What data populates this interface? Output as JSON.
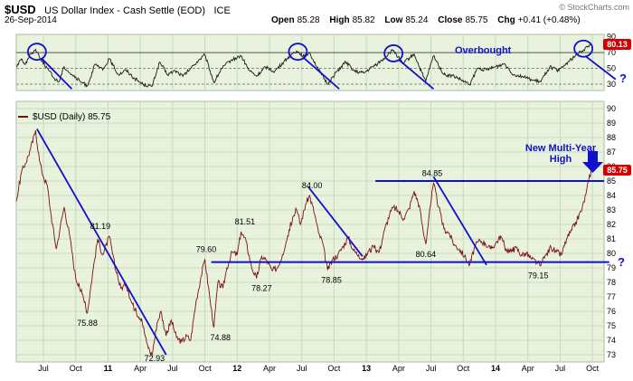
{
  "header": {
    "symbol": "$USD",
    "title": "US Dollar Index - Cash Settle (EOD)",
    "exchange": "ICE",
    "date": "26-Sep-2014",
    "quote_fields": [
      {
        "label": "Open",
        "value": "85.28"
      },
      {
        "label": "High",
        "value": "85.82"
      },
      {
        "label": "Low",
        "value": "85.24"
      },
      {
        "label": "Close",
        "value": "85.75"
      },
      {
        "label": "Chg",
        "value": "+0.41 (+0.48%)"
      }
    ],
    "copyright": "© StockCharts.com"
  },
  "annotations": {
    "legend": "$USD (Daily) 85.75",
    "overbought": "Overbought",
    "new_high_line1": "New Multi-Year",
    "new_high_line2": "High",
    "question_indicator": "?",
    "question_price": "?"
  },
  "colors": {
    "plot_bg": "#E8F2DC",
    "grid": "#C6DABE",
    "panel_border": "#A8BCA4",
    "price_line": "#7A1111",
    "indicator_line": "#1A1A1A",
    "annotation": "#1111CC",
    "badge_bg": "#D40000",
    "badge_text": "#FFFFFF"
  },
  "chart_data": {
    "type": "line",
    "title": "$USD US Dollar Index - Cash Settle (EOD) ICE",
    "x_domain": [
      2010.29,
      2014.84
    ],
    "x_ticks": [
      {
        "t": 2010.5,
        "label": "Jul"
      },
      {
        "t": 2010.75,
        "label": "Oct"
      },
      {
        "t": 2011.0,
        "label": "11",
        "year": true
      },
      {
        "t": 2011.25,
        "label": "Apr"
      },
      {
        "t": 2011.5,
        "label": "Jul"
      },
      {
        "t": 2011.75,
        "label": "Oct"
      },
      {
        "t": 2012.0,
        "label": "12",
        "year": true
      },
      {
        "t": 2012.25,
        "label": "Apr"
      },
      {
        "t": 2012.5,
        "label": "Jul"
      },
      {
        "t": 2012.75,
        "label": "Oct"
      },
      {
        "t": 2013.0,
        "label": "13",
        "year": true
      },
      {
        "t": 2013.25,
        "label": "Apr"
      },
      {
        "t": 2013.5,
        "label": "Jul"
      },
      {
        "t": 2013.75,
        "label": "Oct"
      },
      {
        "t": 2014.0,
        "label": "14",
        "year": true
      },
      {
        "t": 2014.25,
        "label": "Apr"
      },
      {
        "t": 2014.5,
        "label": "Jul"
      },
      {
        "t": 2014.75,
        "label": "Oct"
      }
    ],
    "panels": [
      {
        "id": "indicator",
        "kind": "rsi",
        "name": "Overbought/oversold oscillator",
        "ylim": [
          22,
          93
        ],
        "y_ticks": [
          90,
          70,
          50,
          30
        ],
        "levels": {
          "overbought": 70,
          "mid": 50,
          "oversold": 30
        },
        "last_value": "80.13",
        "noise": 2.2,
        "series": [
          [
            2010.29,
            52
          ],
          [
            2010.33,
            62
          ],
          [
            2010.36,
            55
          ],
          [
            2010.4,
            68
          ],
          [
            2010.44,
            74
          ],
          [
            2010.48,
            62
          ],
          [
            2010.53,
            50
          ],
          [
            2010.58,
            38
          ],
          [
            2010.62,
            33
          ],
          [
            2010.66,
            52
          ],
          [
            2010.72,
            42
          ],
          [
            2010.78,
            34
          ],
          [
            2010.84,
            28
          ],
          [
            2010.9,
            55
          ],
          [
            2010.96,
            48
          ],
          [
            2011.01,
            62
          ],
          [
            2011.08,
            42
          ],
          [
            2011.14,
            48
          ],
          [
            2011.2,
            38
          ],
          [
            2011.27,
            30
          ],
          [
            2011.34,
            27
          ],
          [
            2011.4,
            58
          ],
          [
            2011.46,
            42
          ],
          [
            2011.52,
            47
          ],
          [
            2011.58,
            40
          ],
          [
            2011.64,
            50
          ],
          [
            2011.7,
            60
          ],
          [
            2011.75,
            67
          ],
          [
            2011.82,
            32
          ],
          [
            2011.88,
            50
          ],
          [
            2011.95,
            60
          ],
          [
            2012.03,
            66
          ],
          [
            2012.09,
            48
          ],
          [
            2012.15,
            40
          ],
          [
            2012.22,
            52
          ],
          [
            2012.29,
            46
          ],
          [
            2012.36,
            58
          ],
          [
            2012.42,
            68
          ],
          [
            2012.46,
            72
          ],
          [
            2012.52,
            65
          ],
          [
            2012.56,
            70
          ],
          [
            2012.63,
            48
          ],
          [
            2012.7,
            30
          ],
          [
            2012.77,
            46
          ],
          [
            2012.84,
            58
          ],
          [
            2012.91,
            46
          ],
          [
            2012.98,
            44
          ],
          [
            2013.05,
            52
          ],
          [
            2013.12,
            60
          ],
          [
            2013.18,
            70
          ],
          [
            2013.21,
            73
          ],
          [
            2013.28,
            56
          ],
          [
            2013.37,
            68
          ],
          [
            2013.44,
            40
          ],
          [
            2013.46,
            34
          ],
          [
            2013.52,
            66
          ],
          [
            2013.6,
            42
          ],
          [
            2013.68,
            40
          ],
          [
            2013.76,
            33
          ],
          [
            2013.8,
            29
          ],
          [
            2013.86,
            50
          ],
          [
            2013.93,
            48
          ],
          [
            2014.0,
            52
          ],
          [
            2014.07,
            56
          ],
          [
            2014.14,
            42
          ],
          [
            2014.21,
            40
          ],
          [
            2014.28,
            35
          ],
          [
            2014.35,
            33
          ],
          [
            2014.42,
            52
          ],
          [
            2014.49,
            47
          ],
          [
            2014.56,
            58
          ],
          [
            2014.62,
            66
          ],
          [
            2014.67,
            72
          ],
          [
            2014.71,
            77
          ],
          [
            2014.74,
            80.13
          ]
        ],
        "circles": [
          [
            2010.45,
            71
          ],
          [
            2012.47,
            71
          ],
          [
            2013.21,
            69
          ],
          [
            2014.68,
            75
          ]
        ],
        "trendlines": [
          [
            2010.49,
            62,
            2010.72,
            24
          ],
          [
            2012.51,
            64,
            2012.79,
            24
          ],
          [
            2013.25,
            61,
            2013.52,
            24
          ],
          [
            2014.7,
            65,
            2014.93,
            36
          ]
        ]
      },
      {
        "id": "price",
        "kind": "price",
        "name": "$USD daily close",
        "ylim": [
          72.5,
          90.5
        ],
        "y_ticks": [
          90,
          89,
          88,
          87,
          86,
          85,
          84,
          83,
          82,
          81,
          80,
          79,
          78,
          77,
          76,
          75,
          74,
          73
        ],
        "last_value": "85.75",
        "noise": 0.22,
        "series": [
          [
            2010.29,
            83.6
          ],
          [
            2010.33,
            85.6
          ],
          [
            2010.36,
            86.2
          ],
          [
            2010.4,
            87.2
          ],
          [
            2010.44,
            88.5
          ],
          [
            2010.47,
            86.4
          ],
          [
            2010.5,
            85.3
          ],
          [
            2010.53,
            84.7
          ],
          [
            2010.56,
            82.6
          ],
          [
            2010.6,
            80.3
          ],
          [
            2010.63,
            81.8
          ],
          [
            2010.66,
            83.2
          ],
          [
            2010.7,
            81.4
          ],
          [
            2010.75,
            78.3
          ],
          [
            2010.8,
            77.2
          ],
          [
            2010.84,
            75.88
          ],
          [
            2010.88,
            78.6
          ],
          [
            2010.92,
            81.0
          ],
          [
            2010.96,
            79.9
          ],
          [
            2011.01,
            81.19
          ],
          [
            2011.06,
            78.8
          ],
          [
            2011.1,
            77.6
          ],
          [
            2011.14,
            77.9
          ],
          [
            2011.17,
            76.9
          ],
          [
            2011.22,
            75.9
          ],
          [
            2011.26,
            75.5
          ],
          [
            2011.3,
            73.8
          ],
          [
            2011.34,
            72.93
          ],
          [
            2011.38,
            75.2
          ],
          [
            2011.41,
            76.0
          ],
          [
            2011.45,
            74.3
          ],
          [
            2011.49,
            75.4
          ],
          [
            2011.53,
            74.2
          ],
          [
            2011.57,
            73.9
          ],
          [
            2011.61,
            74.3
          ],
          [
            2011.64,
            74.0
          ],
          [
            2011.68,
            76.6
          ],
          [
            2011.72,
            78.4
          ],
          [
            2011.75,
            79.6
          ],
          [
            2011.79,
            76.8
          ],
          [
            2011.82,
            74.88
          ],
          [
            2011.85,
            78.0
          ],
          [
            2011.89,
            77.6
          ],
          [
            2011.92,
            79.0
          ],
          [
            2011.96,
            80.1
          ],
          [
            2012.0,
            79.9
          ],
          [
            2012.03,
            81.51
          ],
          [
            2012.07,
            80.8
          ],
          [
            2012.11,
            79.1
          ],
          [
            2012.15,
            78.27
          ],
          [
            2012.19,
            79.8
          ],
          [
            2012.23,
            79.5
          ],
          [
            2012.27,
            78.8
          ],
          [
            2012.31,
            79.0
          ],
          [
            2012.35,
            79.9
          ],
          [
            2012.39,
            81.2
          ],
          [
            2012.43,
            82.5
          ],
          [
            2012.46,
            83.0
          ],
          [
            2012.49,
            82.0
          ],
          [
            2012.53,
            83.4
          ],
          [
            2012.56,
            84.0
          ],
          [
            2012.6,
            82.7
          ],
          [
            2012.63,
            81.4
          ],
          [
            2012.66,
            80.8
          ],
          [
            2012.7,
            78.85
          ],
          [
            2012.74,
            79.6
          ],
          [
            2012.78,
            79.9
          ],
          [
            2012.82,
            80.5
          ],
          [
            2012.86,
            81.1
          ],
          [
            2012.9,
            80.2
          ],
          [
            2012.94,
            79.9
          ],
          [
            2012.98,
            79.6
          ],
          [
            2013.02,
            80.2
          ],
          [
            2013.06,
            80.4
          ],
          [
            2013.1,
            80.1
          ],
          [
            2013.14,
            81.6
          ],
          [
            2013.18,
            82.7
          ],
          [
            2013.21,
            83.2
          ],
          [
            2013.25,
            82.9
          ],
          [
            2013.29,
            82.4
          ],
          [
            2013.33,
            83.1
          ],
          [
            2013.37,
            84.3
          ],
          [
            2013.41,
            83.3
          ],
          [
            2013.44,
            81.5
          ],
          [
            2013.46,
            80.64
          ],
          [
            2013.49,
            83.0
          ],
          [
            2013.52,
            84.85
          ],
          [
            2013.56,
            83.2
          ],
          [
            2013.6,
            81.7
          ],
          [
            2013.64,
            81.4
          ],
          [
            2013.68,
            80.6
          ],
          [
            2013.72,
            80.3
          ],
          [
            2013.76,
            79.8
          ],
          [
            2013.8,
            79.2
          ],
          [
            2013.84,
            80.5
          ],
          [
            2013.88,
            80.9
          ],
          [
            2013.92,
            80.7
          ],
          [
            2013.96,
            80.3
          ],
          [
            2014.0,
            80.7
          ],
          [
            2014.04,
            81.2
          ],
          [
            2014.08,
            80.3
          ],
          [
            2014.12,
            80.1
          ],
          [
            2014.16,
            80.4
          ],
          [
            2014.2,
            79.9
          ],
          [
            2014.24,
            80.0
          ],
          [
            2014.28,
            79.6
          ],
          [
            2014.32,
            79.4
          ],
          [
            2014.35,
            79.15
          ],
          [
            2014.39,
            79.9
          ],
          [
            2014.43,
            80.4
          ],
          [
            2014.47,
            80.1
          ],
          [
            2014.51,
            79.9
          ],
          [
            2014.55,
            81.0
          ],
          [
            2014.59,
            81.6
          ],
          [
            2014.63,
            82.3
          ],
          [
            2014.67,
            83.1
          ],
          [
            2014.7,
            84.1
          ],
          [
            2014.72,
            85.0
          ],
          [
            2014.74,
            85.75
          ]
        ],
        "point_labels": [
          {
            "t": 2010.94,
            "v": 81.19,
            "text": "81.19",
            "side": "above"
          },
          {
            "t": 2010.84,
            "v": 75.88,
            "text": "75.88",
            "side": "below"
          },
          {
            "t": 2011.36,
            "v": 72.93,
            "text": "72.93",
            "side": "below"
          },
          {
            "t": 2011.76,
            "v": 79.6,
            "text": "79.60",
            "side": "above"
          },
          {
            "t": 2011.87,
            "v": 74.88,
            "text": "74.88",
            "side": "below"
          },
          {
            "t": 2012.06,
            "v": 81.51,
            "text": "81.51",
            "side": "above"
          },
          {
            "t": 2012.19,
            "v": 78.27,
            "text": "78.27",
            "side": "below"
          },
          {
            "t": 2012.58,
            "v": 84.0,
            "text": "84.00",
            "side": "above"
          },
          {
            "t": 2012.73,
            "v": 78.85,
            "text": "78.85",
            "side": "below"
          },
          {
            "t": 2013.51,
            "v": 84.85,
            "text": "84.85",
            "side": "above"
          },
          {
            "t": 2013.46,
            "v": 80.64,
            "text": "80.64",
            "side": "below"
          },
          {
            "t": 2014.33,
            "v": 79.15,
            "text": "79.15",
            "side": "below"
          }
        ],
        "trendlines": [
          [
            2010.45,
            88.6,
            2011.45,
            73.0
          ],
          [
            2012.55,
            84.6,
            2012.97,
            79.8
          ],
          [
            2013.52,
            85.3,
            2013.93,
            79.2
          ]
        ],
        "hlines": [
          [
            85.0,
            2013.07,
            2014.84
          ],
          [
            79.4,
            2011.8,
            2014.88
          ]
        ]
      }
    ]
  }
}
